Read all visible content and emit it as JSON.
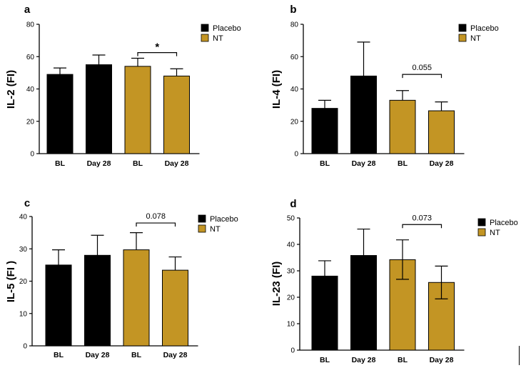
{
  "colors": {
    "placebo": "#000000",
    "nt": "#C39524",
    "axis": "#000000"
  },
  "legend": {
    "placebo": "Placebo",
    "nt": "NT"
  },
  "chart_data": [
    {
      "type": "bar",
      "panel_label": "a",
      "ylabel": "IL-2 (FI)",
      "ylim": [
        0,
        80
      ],
      "yticks": [
        0,
        20,
        40,
        60,
        80
      ],
      "categories": [
        "BL",
        "Day 28",
        "BL",
        "Day 28"
      ],
      "groups": [
        "Placebo",
        "Placebo",
        "NT",
        "NT"
      ],
      "values": [
        49,
        55,
        54,
        48
      ],
      "error_upper": [
        53,
        61,
        59,
        52.5
      ],
      "error_lower": null,
      "significance": {
        "from": 2,
        "to": 3,
        "label": "*",
        "y": 62.5
      },
      "legend_position": "top-right"
    },
    {
      "type": "bar",
      "panel_label": "b",
      "ylabel": "IL-4 (FI)",
      "ylim": [
        0,
        80
      ],
      "yticks": [
        0,
        20,
        40,
        60,
        80
      ],
      "categories": [
        "BL",
        "Day 28",
        "BL",
        "Day 28"
      ],
      "groups": [
        "Placebo",
        "Placebo",
        "NT",
        "NT"
      ],
      "values": [
        28,
        48,
        33,
        26.5
      ],
      "error_upper": [
        33,
        69,
        39,
        32
      ],
      "error_lower": null,
      "significance": {
        "from": 2,
        "to": 3,
        "label": "0.055",
        "y": 49
      },
      "legend_position": "top-right"
    },
    {
      "type": "bar",
      "panel_label": "c",
      "ylabel": "IL-5 (FI )",
      "ylim": [
        0,
        40
      ],
      "yticks": [
        0,
        10,
        20,
        30,
        40
      ],
      "categories": [
        "BL",
        "Day 28",
        "BL",
        "Day 28"
      ],
      "groups": [
        "Placebo",
        "Placebo",
        "NT",
        "NT"
      ],
      "values": [
        25,
        28,
        29.7,
        23.4
      ],
      "error_upper": [
        29.7,
        34.2,
        35,
        27.5
      ],
      "error_lower": null,
      "significance": {
        "from": 2,
        "to": 3,
        "label": "0.078",
        "y": 38
      },
      "legend_position": "top-right"
    },
    {
      "type": "bar",
      "panel_label": "d",
      "ylabel": "IL-23 (FI)",
      "ylim": [
        0,
        50
      ],
      "yticks": [
        0,
        10,
        20,
        30,
        40,
        50
      ],
      "categories": [
        "BL",
        "Day 28",
        "BL",
        "Day 28"
      ],
      "groups": [
        "Placebo",
        "Placebo",
        "NT",
        "NT"
      ],
      "values": [
        28,
        35.8,
        34.2,
        25.6
      ],
      "error_upper": [
        33.8,
        45.8,
        41.7,
        31.8
      ],
      "error_lower": [
        null,
        null,
        26.8,
        19.4
      ],
      "significance": {
        "from": 2,
        "to": 3,
        "label": "0.073",
        "y": 47.5
      },
      "legend_position": "top-right"
    }
  ]
}
